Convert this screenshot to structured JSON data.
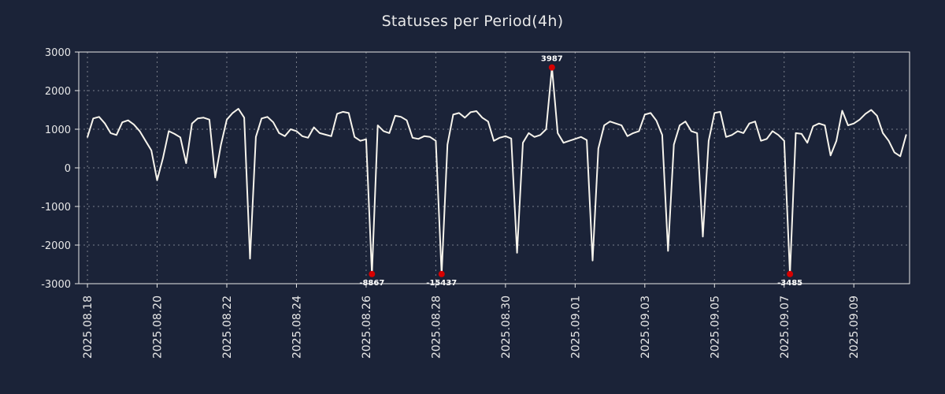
{
  "title": "Statuses per Period(4h)",
  "colors": {
    "background": "#1b2338",
    "line": "#f7f4ec",
    "grid": "#ffffff",
    "frame": "#e8e8e8",
    "marker": "#d60000",
    "text": "#e8e8e8",
    "annotation": "#ffffff"
  },
  "chart_data": {
    "type": "line",
    "title": "Statuses per Period(4h)",
    "xlabel": "",
    "ylabel": "",
    "period_hours": 4,
    "ylim": [
      -3000,
      3000
    ],
    "y_ticks": [
      3000,
      2000,
      1000,
      0,
      -1000,
      -2000,
      -3000
    ],
    "xlim_days": [
      -0.25,
      23.6
    ],
    "x_step_days": 0.1666667,
    "x_tick_positions_days": [
      0,
      2,
      4,
      6,
      8,
      10,
      12,
      14,
      16,
      18,
      20,
      22
    ],
    "x_tick_labels": [
      "2025.08.18",
      "2025.08.20",
      "2025.08.22",
      "2025.08.24",
      "2025.08.26",
      "2025.08.28",
      "2025.08.30",
      "2025.09.01",
      "2025.09.03",
      "2025.09.05",
      "2025.09.07",
      "2025.09.09"
    ],
    "grid": true,
    "legend": false,
    "clip": {
      "min": -2750,
      "max": 2600
    },
    "values": [
      800,
      1280,
      1320,
      1150,
      900,
      850,
      1180,
      1230,
      1120,
      950,
      700,
      450,
      -320,
      250,
      950,
      880,
      790,
      120,
      1150,
      1280,
      1300,
      1250,
      -250,
      600,
      1250,
      1420,
      1530,
      1300,
      -2350,
      800,
      1280,
      1320,
      1180,
      900,
      820,
      1000,
      950,
      820,
      780,
      1050,
      900,
      860,
      820,
      1400,
      1450,
      1420,
      800,
      700,
      740,
      -8867,
      1100,
      950,
      900,
      1350,
      1320,
      1230,
      780,
      750,
      820,
      800,
      700,
      -15437,
      600,
      1380,
      1420,
      1300,
      1440,
      1470,
      1300,
      1200,
      700,
      780,
      820,
      760,
      -2200,
      650,
      900,
      800,
      850,
      1000,
      3987,
      900,
      650,
      700,
      750,
      800,
      720,
      -2400,
      500,
      1100,
      1200,
      1150,
      1100,
      820,
      900,
      950,
      1380,
      1420,
      1220,
      850,
      -2150,
      600,
      1100,
      1200,
      950,
      900,
      -1780,
      700,
      1420,
      1450,
      800,
      850,
      950,
      900,
      1150,
      1200,
      700,
      750,
      950,
      850,
      700,
      -3485,
      900,
      880,
      650,
      1080,
      1150,
      1100,
      320,
      700,
      1480,
      1100,
      1150,
      1250,
      1400,
      1500,
      1350,
      900,
      700,
      400,
      300,
      850
    ],
    "annotations": [
      {
        "index": 49,
        "value": -8867,
        "label": "-8867",
        "edge": "bottom"
      },
      {
        "index": 61,
        "value": -15437,
        "label": "-15437",
        "edge": "bottom"
      },
      {
        "index": 80,
        "value": 3987,
        "label": "3987",
        "edge": "top"
      },
      {
        "index": 121,
        "value": -3485,
        "label": "-3485",
        "edge": "bottom"
      }
    ]
  }
}
